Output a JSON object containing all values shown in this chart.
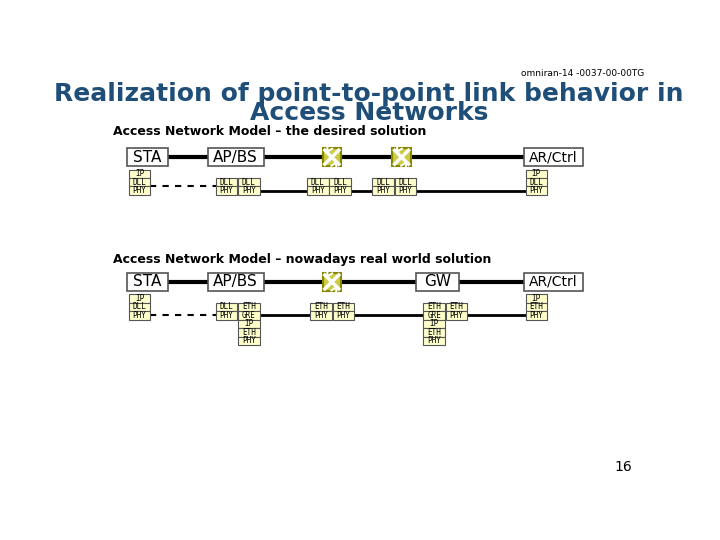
{
  "title_line1": "Realization of point-to-point link behavior in",
  "title_line2": "Access Networks",
  "slide_id": "omniran-14 -0037-00-00TG",
  "page_num": "16",
  "title_color": "#1F4E79",
  "bg_color": "#FFFFFF",
  "section1_label": "Access Network Model – the desired solution",
  "section2_label": "Access Network Model – nowadays real world solution",
  "box_fill": "#FFFFCC",
  "box_edge": "#555555",
  "switch_fill": "#CCCC44",
  "line_color": "#000000"
}
